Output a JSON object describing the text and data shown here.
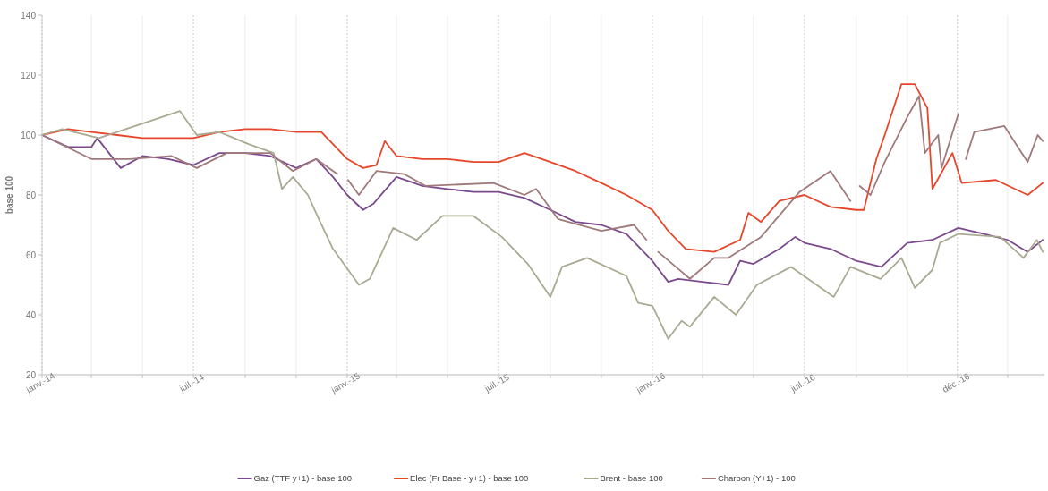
{
  "chart_data": {
    "type": "line",
    "ylabel": "base 100",
    "xlim": [
      "2014-01-01",
      "2017-04-14"
    ],
    "ylim": [
      20,
      140
    ],
    "yticks": [
      20,
      40,
      60,
      80,
      100,
      120,
      140
    ],
    "xticks": [
      {
        "value": "2014-01-01",
        "label": "janv.-14"
      },
      {
        "value": "2014-03-01",
        "label": null
      },
      {
        "value": "2014-05-01",
        "label": null
      },
      {
        "value": "2014-07-01",
        "label": "juil.-14"
      },
      {
        "value": "2014-09-01",
        "label": null
      },
      {
        "value": "2014-11-01",
        "label": null
      },
      {
        "value": "2015-01-01",
        "label": "janv.-15"
      },
      {
        "value": "2015-03-01",
        "label": null
      },
      {
        "value": "2015-05-01",
        "label": null
      },
      {
        "value": "2015-07-01",
        "label": "juil.-15"
      },
      {
        "value": "2015-09-01",
        "label": null
      },
      {
        "value": "2015-11-01",
        "label": null
      },
      {
        "value": "2016-01-01",
        "label": "janv.-16"
      },
      {
        "value": "2016-03-01",
        "label": null
      },
      {
        "value": "2016-05-01",
        "label": null
      },
      {
        "value": "2016-07-01",
        "label": "juil.-16"
      },
      {
        "value": "2016-09-01",
        "label": null
      },
      {
        "value": "2016-11-01",
        "label": null
      },
      {
        "value": "2016-12-31",
        "label": "déc.-16"
      },
      {
        "value": "2017-03-01",
        "label": null
      }
    ],
    "grid": "x",
    "legend": "bottom",
    "marker": "none",
    "line_style": "solid",
    "series": [
      {
        "name": "Gaz (TTF y+1) - base 100",
        "color": "#7b4a8c",
        "x": [
          "2014-01-01",
          "2014-02-01",
          "2014-03-01",
          "2014-03-08",
          "2014-04-05",
          "2014-05-01",
          "2014-06-01",
          "2014-07-01",
          "2014-08-01",
          "2014-09-01",
          "2014-10-01",
          "2014-11-01",
          "2014-11-25",
          "2014-12-15",
          "2015-01-01",
          "2015-01-20",
          "2015-02-01",
          "2015-03-01",
          "2015-04-01",
          "2015-05-01",
          "2015-06-01",
          "2015-07-01",
          "2015-08-01",
          "2015-09-01",
          "2015-10-01",
          "2015-11-01",
          "2015-12-01",
          "2016-01-01",
          "2016-01-20",
          "2016-02-01",
          "2016-03-01",
          "2016-04-01",
          "2016-04-15",
          "2016-05-01",
          "2016-06-01",
          "2016-06-20",
          "2016-07-01",
          "2016-08-01",
          "2016-09-01",
          "2016-10-01",
          "2016-11-01",
          "2016-12-01",
          "2017-01-01",
          "2017-02-01",
          "2017-03-01",
          "2017-03-25",
          "2017-04-12"
        ],
        "values": [
          100,
          96,
          96,
          99,
          89,
          93,
          92,
          90,
          94,
          94,
          93,
          89,
          92,
          86,
          80,
          75,
          77,
          86,
          83,
          82,
          81,
          81,
          79,
          75,
          71,
          70,
          67,
          58,
          51,
          52,
          51,
          50,
          58,
          57,
          62,
          66,
          64,
          62,
          58,
          56,
          64,
          65,
          69,
          67,
          65,
          61,
          65
        ]
      },
      {
        "name": "Elec (Fr Base - y+1) - base 100",
        "color": "#e8462a",
        "x": [
          "2014-01-01",
          "2014-02-01",
          "2014-03-01",
          "2014-04-01",
          "2014-05-01",
          "2014-07-01",
          "2014-08-01",
          "2014-09-01",
          "2014-10-01",
          "2014-11-01",
          "2014-12-01",
          "2014-12-15",
          "2015-01-01",
          "2015-01-20",
          "2015-02-05",
          "2015-02-15",
          "2015-03-01",
          "2015-04-01",
          "2015-05-01",
          "2015-06-01",
          "2015-07-01",
          "2015-08-01",
          "2015-09-01",
          "2015-10-01",
          "2015-11-01",
          "2015-12-01",
          "2016-01-01",
          "2016-01-20",
          "2016-02-10",
          "2016-03-15",
          "2016-04-15",
          "2016-04-25",
          "2016-05-10",
          "2016-06-01",
          "2016-07-01",
          "2016-08-01",
          "2016-09-01",
          "2016-09-10",
          "2016-09-25",
          "2016-10-05",
          "2016-10-25",
          "2016-11-10",
          "2016-11-25",
          "2016-12-01",
          "2016-12-25",
          "2017-01-05",
          "2017-02-15",
          "2017-03-25",
          "2017-04-12"
        ],
        "values": [
          100,
          102,
          101,
          100,
          99,
          99,
          101,
          102,
          102,
          101,
          101,
          97,
          92,
          89,
          90,
          98,
          93,
          92,
          92,
          91,
          91,
          94,
          91,
          88,
          84,
          80,
          75,
          68,
          62,
          61,
          65,
          74,
          71,
          78,
          80,
          76,
          75,
          75,
          92,
          100,
          117,
          117,
          109,
          82,
          94,
          84,
          85,
          80,
          84
        ]
      },
      {
        "name": "Brent - base 100",
        "color": "#aaaa92",
        "x": [
          "2014-01-01",
          "2014-01-25",
          "2014-03-10",
          "2014-06-15",
          "2014-07-05",
          "2014-08-01",
          "2014-09-05",
          "2014-10-05",
          "2014-10-15",
          "2014-10-28",
          "2014-11-15",
          "2014-11-28",
          "2014-12-15",
          "2015-01-15",
          "2015-01-28",
          "2015-02-25",
          "2015-03-25",
          "2015-04-25",
          "2015-06-01",
          "2015-07-05",
          "2015-08-05",
          "2015-09-01",
          "2015-09-15",
          "2015-10-15",
          "2015-12-01",
          "2015-12-15",
          "2016-01-01",
          "2016-01-20",
          "2016-02-05",
          "2016-02-15",
          "2016-03-15",
          "2016-04-10",
          "2016-05-05",
          "2016-06-15",
          "2016-08-05",
          "2016-08-25",
          "2016-09-30",
          "2016-10-25",
          "2016-11-10",
          "2016-12-01",
          "2016-12-10",
          "2017-01-01",
          "2017-02-20",
          "2017-03-20",
          "2017-04-05",
          "2017-04-12"
        ],
        "values": [
          100,
          102,
          99,
          108,
          100,
          101,
          97,
          94,
          82,
          86,
          80,
          72,
          62,
          50,
          52,
          69,
          65,
          73,
          73,
          66,
          57,
          46,
          56,
          59,
          53,
          44,
          43,
          32,
          38,
          36,
          46,
          40,
          50,
          56,
          46,
          56,
          52,
          59,
          49,
          55,
          64,
          67,
          66,
          59,
          65,
          61
        ]
      },
      {
        "name": "Charbon (Y+1) - 100",
        "color": "#a0797b",
        "x": [
          "2014-01-01",
          "2014-03-01",
          "2014-04-15",
          "2014-06-05",
          "2014-07-05",
          "2014-08-10",
          "2014-10-01",
          "2014-10-28",
          "2014-11-25",
          "2014-12-20",
          "2014-12-25",
          "2015-01-02",
          "2015-01-15",
          "2015-02-05",
          "2015-03-10",
          "2015-04-05",
          "2015-06-25",
          "2015-08-01",
          "2015-08-15",
          "2015-09-10",
          "2015-11-01",
          "2015-12-10",
          "2015-12-25",
          "2015-12-31",
          "2016-01-08",
          "2016-02-15",
          "2016-03-15",
          "2016-04-01",
          "2016-05-10",
          "2016-06-25",
          "2016-08-01",
          "2016-08-25",
          "2016-08-30",
          "2016-09-05",
          "2016-09-18",
          "2016-10-05",
          "2016-11-01",
          "2016-11-15",
          "2016-11-22",
          "2016-12-08",
          "2016-12-12",
          "2017-01-01",
          "2017-01-05",
          "2017-01-10",
          "2017-01-20",
          "2017-02-25",
          "2017-03-25",
          "2017-04-06",
          "2017-04-12"
        ],
        "values": [
          100,
          92,
          92,
          93,
          89,
          94,
          94,
          88,
          92,
          87,
          null,
          85,
          80,
          88,
          87,
          83,
          84,
          80,
          82,
          72,
          68,
          70,
          65,
          null,
          61,
          52,
          59,
          59,
          66,
          81,
          88,
          78,
          null,
          83,
          80,
          91,
          106,
          113,
          94,
          100,
          89,
          107,
          null,
          92,
          101,
          103,
          91,
          100,
          98
        ]
      }
    ]
  }
}
